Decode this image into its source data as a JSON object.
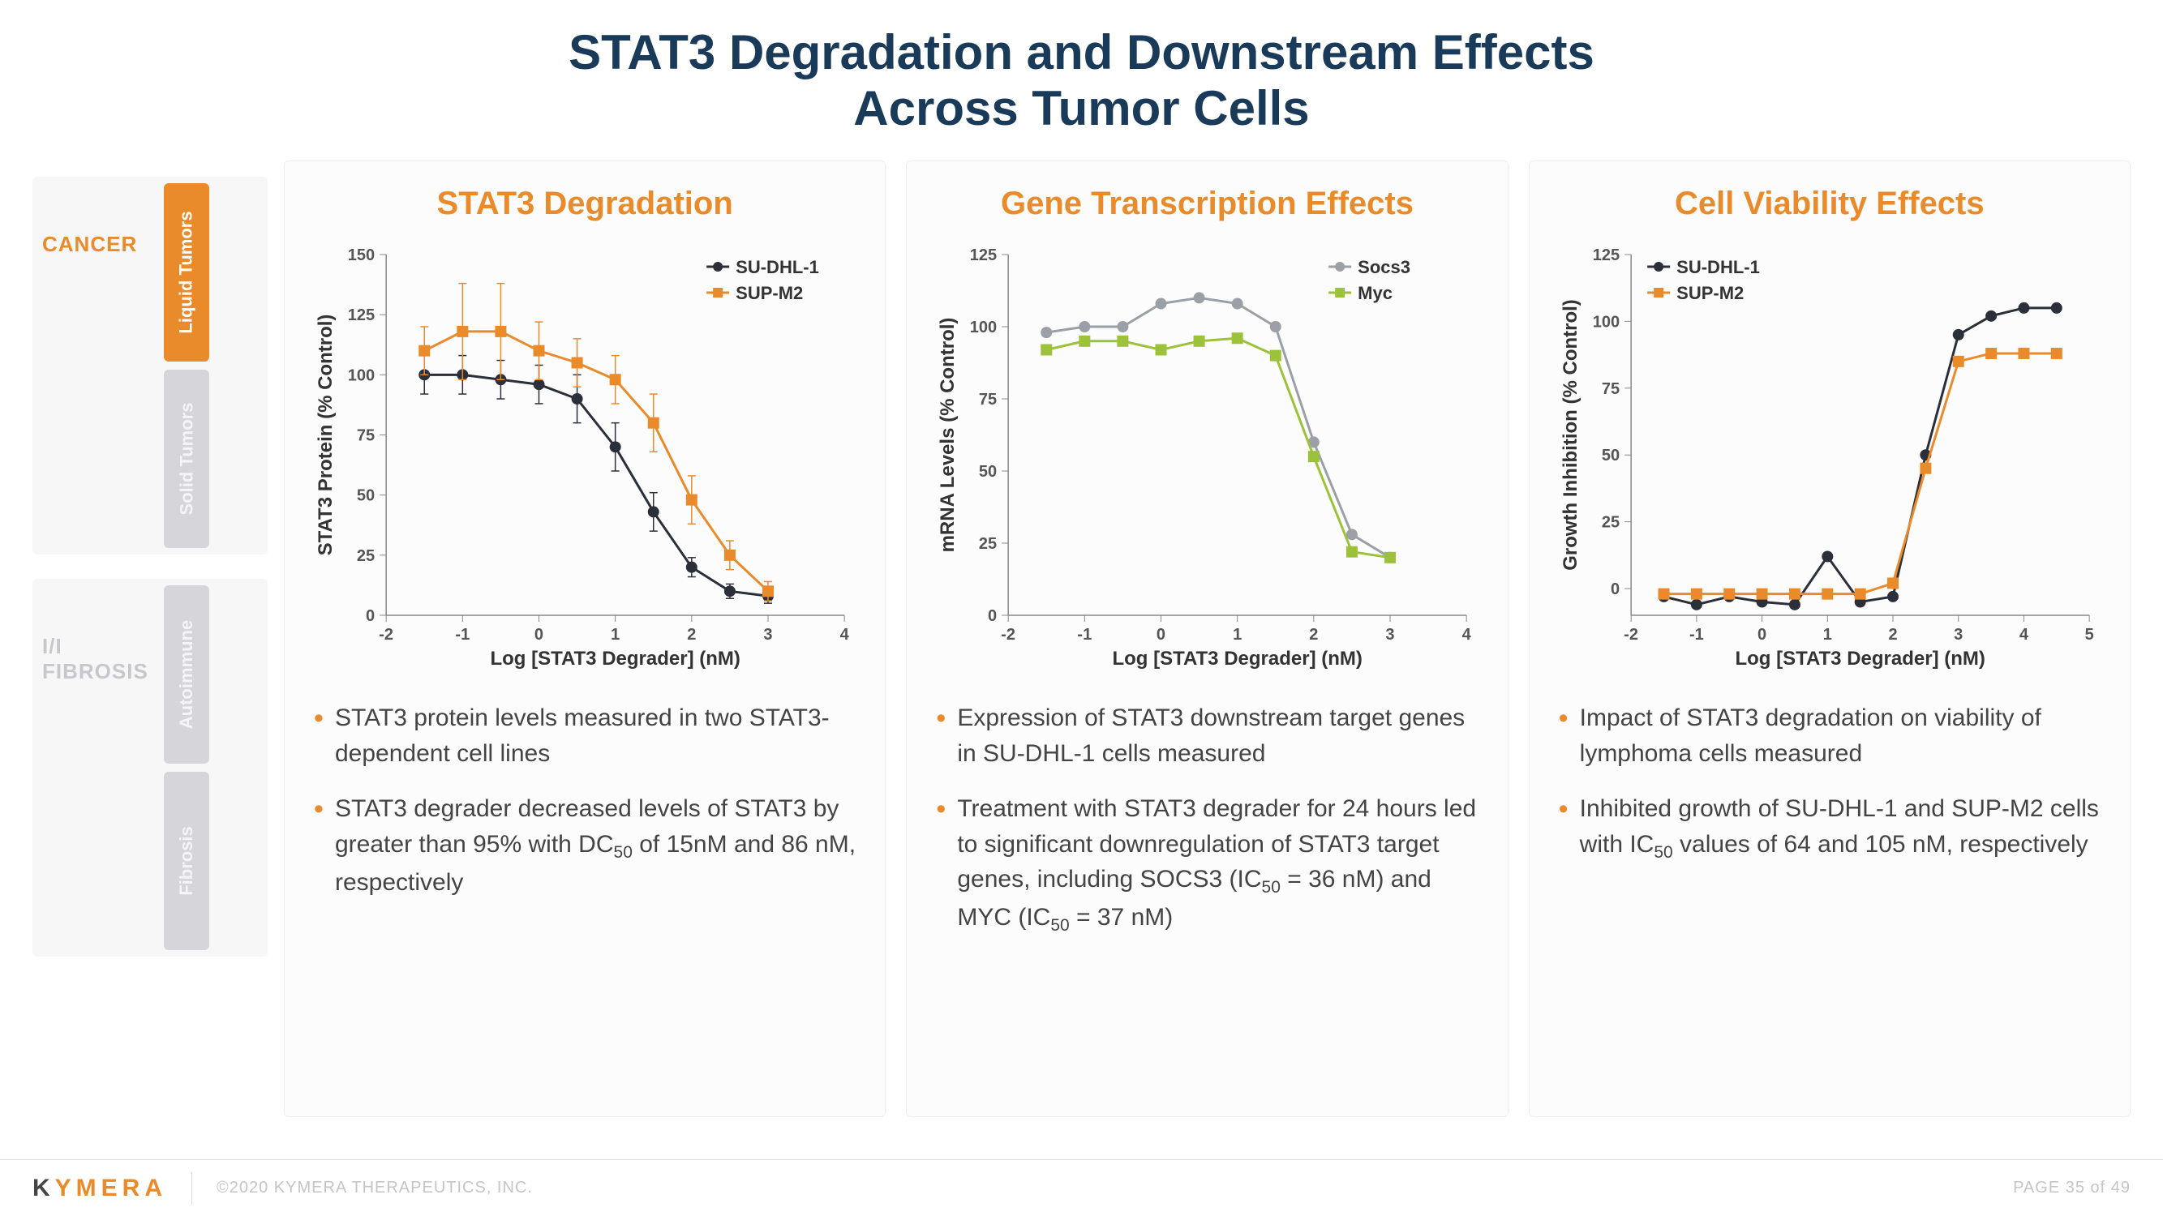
{
  "title_line1": "STAT3 Degradation and Downstream Effects",
  "title_line2": "Across Tumor Cells",
  "title_color": "#1a3a5a",
  "accent_color": "#e98b2a",
  "sidebar": {
    "group1": {
      "label": "CANCER",
      "active": true,
      "tabs": [
        {
          "label": "Liquid Tumors",
          "active": true
        },
        {
          "label": "Solid Tumors",
          "active": false
        }
      ]
    },
    "group2": {
      "label": "I/I FIBROSIS",
      "active": false,
      "tabs": [
        {
          "label": "Autoimmune",
          "active": false
        },
        {
          "label": "Fibrosis",
          "active": false
        }
      ]
    }
  },
  "panels": [
    {
      "title": "STAT3 Degradation",
      "xlabel": "Log [STAT3 Degrader] (nM)",
      "ylabel": "STAT3 Protein (% Control)",
      "xlim": [
        -2,
        4
      ],
      "xtick_step": 1,
      "ylim": [
        0,
        150
      ],
      "ytick_step": 25,
      "legend_pos": "top-right",
      "series": [
        {
          "name": "SU-DHL-1",
          "color": "#2b2f3a",
          "marker": "circle",
          "x": [
            -1.5,
            -1,
            -0.5,
            0,
            0.5,
            1,
            1.5,
            2,
            2.5,
            3
          ],
          "y": [
            100,
            100,
            98,
            96,
            90,
            70,
            43,
            20,
            10,
            8
          ],
          "err": [
            8,
            8,
            8,
            8,
            10,
            10,
            8,
            4,
            3,
            3
          ]
        },
        {
          "name": "SUP-M2",
          "color": "#e98b2a",
          "marker": "square",
          "x": [
            -1.5,
            -1,
            -0.5,
            0,
            0.5,
            1,
            1.5,
            2,
            2.5,
            3
          ],
          "y": [
            110,
            118,
            118,
            110,
            105,
            98,
            80,
            48,
            25,
            10
          ],
          "err": [
            10,
            20,
            20,
            12,
            10,
            10,
            12,
            10,
            6,
            4
          ]
        }
      ],
      "bullets": [
        "STAT3 protein levels measured in two STAT3-dependent cell lines",
        "STAT3 degrader decreased levels of STAT3 by greater than 95% with DC<sub>50</sub> of 15nM and 86 nM, respectively"
      ]
    },
    {
      "title": "Gene Transcription Effects",
      "xlabel": "Log [STAT3 Degrader] (nM)",
      "ylabel": "mRNA  Levels (% Control)",
      "xlim": [
        -2,
        4
      ],
      "xtick_step": 1,
      "ylim": [
        0,
        125
      ],
      "ytick_step": 25,
      "legend_pos": "top-right",
      "series": [
        {
          "name": "Socs3",
          "color": "#9aa0a6",
          "marker": "circle",
          "x": [
            -1.5,
            -1,
            -0.5,
            0,
            0.5,
            1,
            1.5,
            2,
            2.5,
            3
          ],
          "y": [
            98,
            100,
            100,
            108,
            110,
            108,
            100,
            60,
            28,
            20
          ],
          "err": [
            0,
            0,
            0,
            0,
            0,
            0,
            0,
            0,
            0,
            0
          ]
        },
        {
          "name": "Myc",
          "color": "#9cc23a",
          "marker": "square",
          "x": [
            -1.5,
            -1,
            -0.5,
            0,
            0.5,
            1,
            1.5,
            2,
            2.5,
            3
          ],
          "y": [
            92,
            95,
            95,
            92,
            95,
            96,
            90,
            55,
            22,
            20
          ],
          "err": [
            0,
            0,
            0,
            0,
            0,
            0,
            0,
            0,
            0,
            0
          ]
        }
      ],
      "bullets": [
        "Expression of STAT3 downstream target genes in SU-DHL-1 cells measured",
        "Treatment with STAT3 degrader for 24 hours led to significant downregulation of STAT3 target genes, including SOCS3 (IC<sub>50</sub> = 36 nM) and MYC (IC<sub>50</sub> = 37 nM)"
      ]
    },
    {
      "title": "Cell Viability Effects",
      "xlabel": "Log [STAT3 Degrader] (nM)",
      "ylabel": "Growth Inhibition (% Control)",
      "xlim": [
        -2,
        5
      ],
      "xtick_step": 1,
      "ylim": [
        -10,
        125
      ],
      "ytick_step": 25,
      "ytick_start": 0,
      "legend_pos": "top-left",
      "series": [
        {
          "name": "SU-DHL-1",
          "color": "#2b2f3a",
          "marker": "circle",
          "x": [
            -1.5,
            -1,
            -0.5,
            0,
            0.5,
            1,
            1.5,
            2,
            2.5,
            3,
            3.5,
            4,
            4.5
          ],
          "y": [
            -3,
            -6,
            -3,
            -5,
            -6,
            12,
            -5,
            -3,
            50,
            95,
            102,
            105,
            105
          ],
          "err": [
            0,
            0,
            0,
            0,
            0,
            0,
            0,
            0,
            0,
            0,
            0,
            0,
            0
          ]
        },
        {
          "name": "SUP-M2",
          "color": "#e98b2a",
          "marker": "square",
          "x": [
            -1.5,
            -1,
            -0.5,
            0,
            0.5,
            1,
            1.5,
            2,
            2.5,
            3,
            3.5,
            4,
            4.5
          ],
          "y": [
            -2,
            -2,
            -2,
            -2,
            -2,
            -2,
            -2,
            2,
            45,
            85,
            88,
            88,
            88
          ],
          "err": [
            0,
            0,
            0,
            0,
            0,
            0,
            0,
            0,
            0,
            0,
            0,
            0,
            0
          ]
        }
      ],
      "bullets": [
        "Impact of STAT3 degradation on viability of lymphoma cells measured",
        "Inhibited growth of SU-DHL-1 and SUP-M2 cells with IC<sub>50</sub> values of 64 and 105 nM, respectively"
      ]
    }
  ],
  "chart_style": {
    "axis_color": "#888888",
    "tick_font": 20,
    "axis_title_font": 24,
    "marker_size": 7,
    "line_width": 3,
    "err_cap": 5
  },
  "footer": {
    "logo_k": "K",
    "logo_rest": "YMERA",
    "copyright": "©2020 KYMERA THERAPEUTICS, INC.",
    "page": "PAGE 35 of 49"
  }
}
